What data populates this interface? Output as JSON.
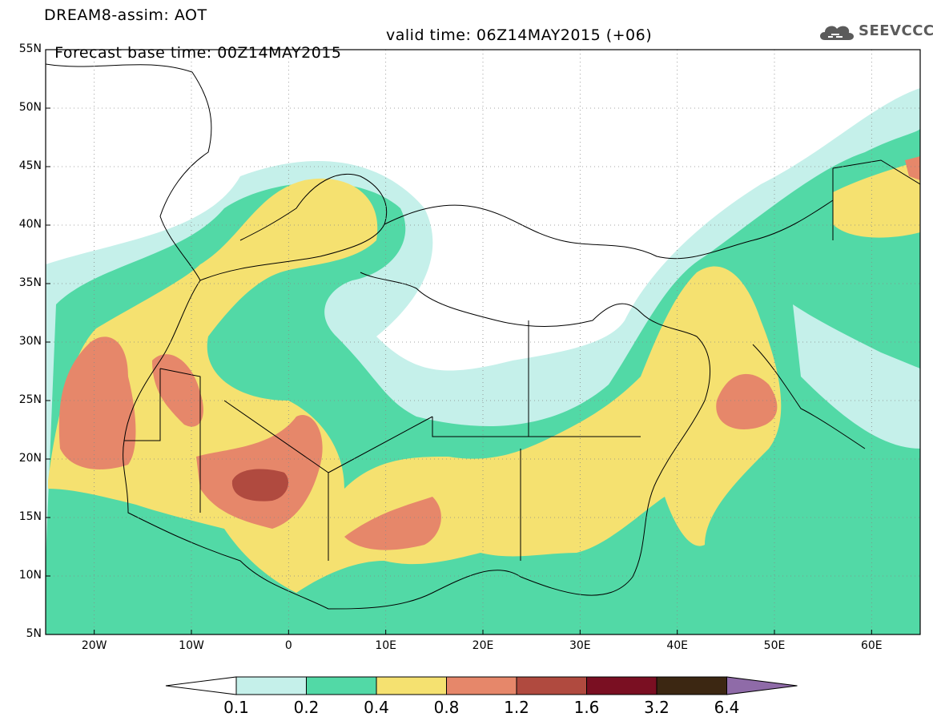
{
  "header": {
    "line1": "DREAM8-assim: AOT",
    "line2_base": "Forecast base time: 00Z14MAY2015",
    "line2_valid": "valid time: 06Z14MAY2015 (+06)",
    "logo_text": "SEEVCCC",
    "logo_icon": "cloud-icon"
  },
  "map": {
    "lon_range": [
      -25,
      65
    ],
    "lat_range": [
      5,
      55
    ],
    "x_ticks": [
      {
        "lon": -20,
        "label": "20W"
      },
      {
        "lon": -10,
        "label": "10W"
      },
      {
        "lon": 0,
        "label": "0"
      },
      {
        "lon": 10,
        "label": "10E"
      },
      {
        "lon": 20,
        "label": "20E"
      },
      {
        "lon": 30,
        "label": "30E"
      },
      {
        "lon": 40,
        "label": "40E"
      },
      {
        "lon": 50,
        "label": "50E"
      },
      {
        "lon": 60,
        "label": "60E"
      }
    ],
    "y_ticks": [
      {
        "lat": 55,
        "label": "55N"
      },
      {
        "lat": 50,
        "label": "50N"
      },
      {
        "lat": 45,
        "label": "45N"
      },
      {
        "lat": 40,
        "label": "40N"
      },
      {
        "lat": 35,
        "label": "35N"
      },
      {
        "lat": 30,
        "label": "30N"
      },
      {
        "lat": 25,
        "label": "25N"
      },
      {
        "lat": 20,
        "label": "20N"
      },
      {
        "lat": 15,
        "label": "15N"
      },
      {
        "lat": 10,
        "label": "10N"
      },
      {
        "lat": 5,
        "label": "5N"
      }
    ],
    "grid": "dotted"
  },
  "colorbar": {
    "levels": [
      "0.1",
      "0.2",
      "0.4",
      "0.8",
      "1.2",
      "1.6",
      "3.2",
      "6.4"
    ],
    "colors": [
      "#ffffff",
      "#c5f0ea",
      "#52d9a6",
      "#f5e170",
      "#e6876a",
      "#b04a3f",
      "#7a0f22",
      "#3c2712",
      "#8f6ba8"
    ]
  }
}
